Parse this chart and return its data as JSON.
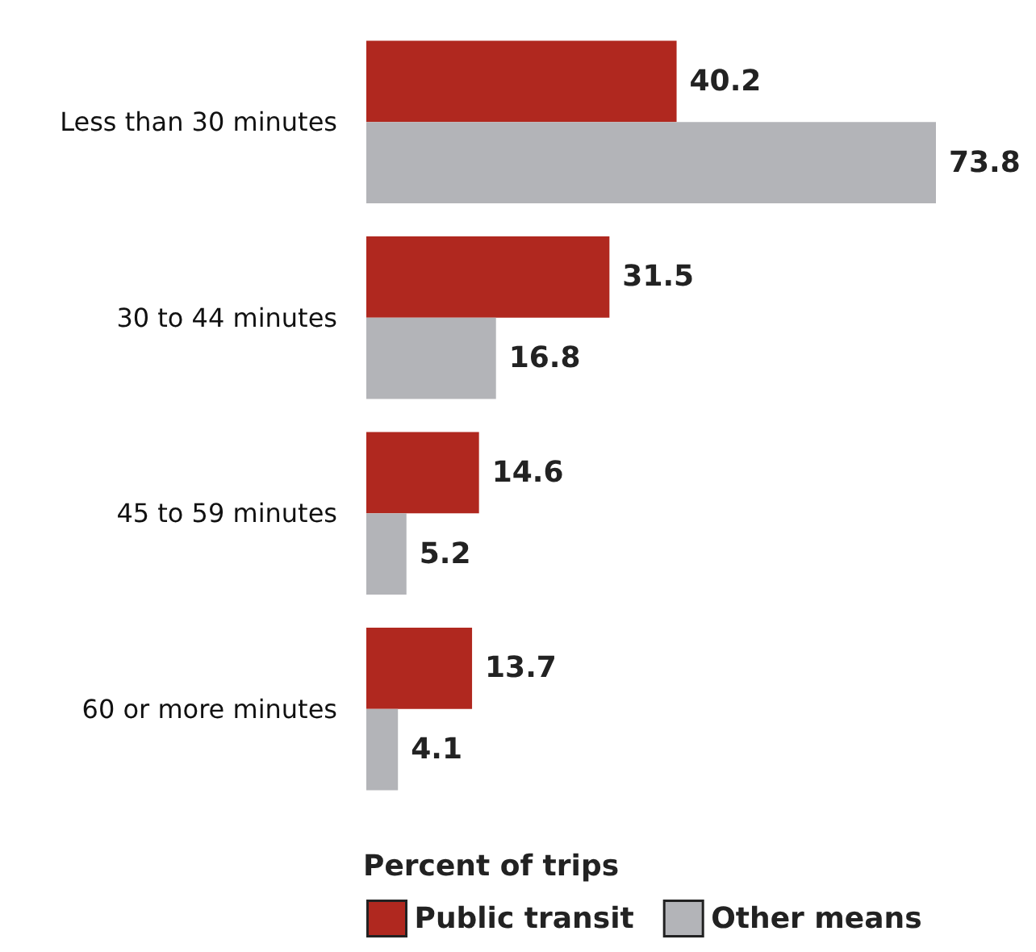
{
  "chart_data": {
    "type": "bar",
    "orientation": "horizontal",
    "categories": [
      "Less than 30 minutes",
      "30 to 44 minutes",
      "45 to 59 minutes",
      "60 or more minutes"
    ],
    "series": [
      {
        "name": "Public transit",
        "color": "#b0281f",
        "values": [
          40.2,
          31.5,
          14.6,
          13.7
        ]
      },
      {
        "name": "Other means",
        "color": "#b3b4b8",
        "values": [
          73.8,
          16.8,
          5.2,
          4.1
        ]
      }
    ],
    "legend_title": "Percent of trips",
    "legend": "bottom",
    "data_labels": true,
    "tick_labels": "y",
    "grid": false
  }
}
